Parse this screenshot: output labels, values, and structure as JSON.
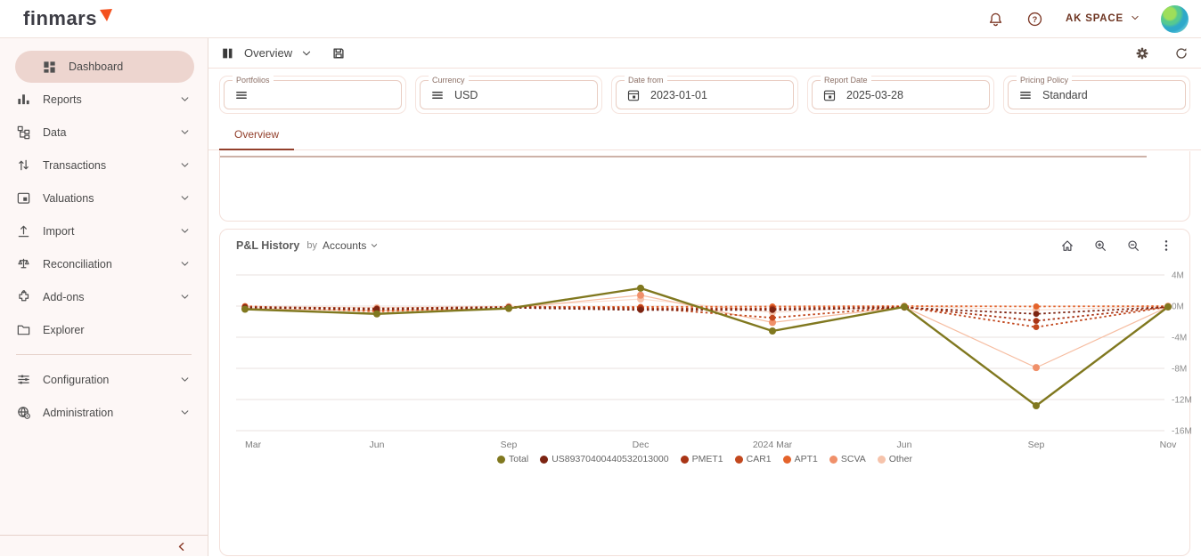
{
  "header": {
    "logo": "finmars",
    "workspace_label": "AK SPACE",
    "accent_color": "#f4511e"
  },
  "sidebar": {
    "items": [
      {
        "label": "Dashboard",
        "icon": "dashboard-icon",
        "chevron": false,
        "active": true
      },
      {
        "label": "Reports",
        "icon": "reports-icon",
        "chevron": true,
        "active": false
      },
      {
        "label": "Data",
        "icon": "data-icon",
        "chevron": true,
        "active": false
      },
      {
        "label": "Transactions",
        "icon": "transactions-icon",
        "chevron": true,
        "active": false
      },
      {
        "label": "Valuations",
        "icon": "valuations-icon",
        "chevron": true,
        "active": false
      },
      {
        "label": "Import",
        "icon": "import-icon",
        "chevron": true,
        "active": false
      },
      {
        "label": "Reconciliation",
        "icon": "reconciliation-icon",
        "chevron": true,
        "active": false
      },
      {
        "label": "Add-ons",
        "icon": "addons-icon",
        "chevron": true,
        "active": false
      },
      {
        "label": "Explorer",
        "icon": "explorer-icon",
        "chevron": false,
        "active": false
      }
    ],
    "footer_items": [
      {
        "label": "Configuration",
        "icon": "configuration-icon",
        "chevron": true,
        "active": false
      },
      {
        "label": "Administration",
        "icon": "administration-icon",
        "chevron": true,
        "active": false
      }
    ]
  },
  "toolbar": {
    "layout_name": "Overview"
  },
  "filters": [
    {
      "label": "Portfolios",
      "icon": "menu-icon",
      "value": ""
    },
    {
      "label": "Currency",
      "icon": "menu-icon",
      "value": "USD"
    },
    {
      "label": "Date from",
      "icon": "calendar-icon",
      "value": "2023-01-01"
    },
    {
      "label": "Report Date",
      "icon": "calendar-icon",
      "value": "2025-03-28"
    },
    {
      "label": "Pricing Policy",
      "icon": "menu-icon",
      "value": "Standard"
    }
  ],
  "tabs": [
    {
      "label": "Overview",
      "active": true
    }
  ],
  "chart_panel": {
    "title": "P&L History",
    "by_label": "by",
    "group_by": "Accounts"
  },
  "chart_data": {
    "type": "line",
    "title": "P&L History by Accounts",
    "categories": [
      "Mar",
      "Jun",
      "Sep",
      "Dec",
      "2024 Mar",
      "Jun",
      "Sep",
      "Nov"
    ],
    "unit": "M",
    "ylim": [
      -16,
      4
    ],
    "grid": true,
    "legend_position": "bottom",
    "yticks": [
      {
        "value": 4,
        "label": "4M"
      },
      {
        "value": 0,
        "label": "0M"
      },
      {
        "value": -4,
        "label": "-4M"
      },
      {
        "value": -8,
        "label": "-8M"
      },
      {
        "value": -12,
        "label": "-12M"
      },
      {
        "value": -16,
        "label": "-16M"
      }
    ],
    "series": [
      {
        "name": "Total",
        "color": "#80781f",
        "dashed": false,
        "width": 2.4,
        "dot": 4,
        "values": [
          -0.4,
          -1.0,
          -0.3,
          2.3,
          -3.2,
          -0.1,
          -12.8,
          -0.1
        ]
      },
      {
        "name": "US89370400440532013000",
        "color": "#7c2412",
        "dashed": true,
        "width": 1.8,
        "dot": 3.4,
        "values": [
          -0.2,
          -0.4,
          -0.2,
          -0.5,
          -0.5,
          -0.2,
          -1.0,
          -0.1
        ]
      },
      {
        "name": "PMET1",
        "color": "#a93516",
        "dashed": true,
        "width": 1.8,
        "dot": 3.4,
        "values": [
          -0.1,
          -0.3,
          -0.1,
          -0.3,
          -0.3,
          -0.1,
          -1.9,
          -0.1
        ]
      },
      {
        "name": "CAR1",
        "color": "#c2481e",
        "dashed": true,
        "width": 1.8,
        "dot": 3.4,
        "values": [
          -0.1,
          -0.5,
          -0.2,
          -0.2,
          -1.5,
          -0.1,
          -2.7,
          -0.1
        ]
      },
      {
        "name": "APT1",
        "color": "#e4632b",
        "dashed": true,
        "width": 1.8,
        "dot": 3.4,
        "values": [
          0,
          -0.7,
          -0.1,
          -0.1,
          -0.05,
          0,
          -0.05,
          0
        ]
      },
      {
        "name": "SCVA",
        "color": "#f0906a",
        "line_color": "#f6bda1",
        "dashed": false,
        "width": 1.2,
        "dot": 4,
        "values": [
          -0.3,
          -0.6,
          -0.3,
          1.4,
          -2.1,
          -0.1,
          -7.9,
          -0.1
        ]
      },
      {
        "name": "Other",
        "color": "#f6c3ab",
        "line_color": "#fadfd2",
        "dashed": false,
        "width": 1.2,
        "dot": 4,
        "values": [
          -0.1,
          -0.2,
          -0.05,
          0.9,
          -0.8,
          0,
          -0.5,
          0
        ]
      }
    ]
  }
}
